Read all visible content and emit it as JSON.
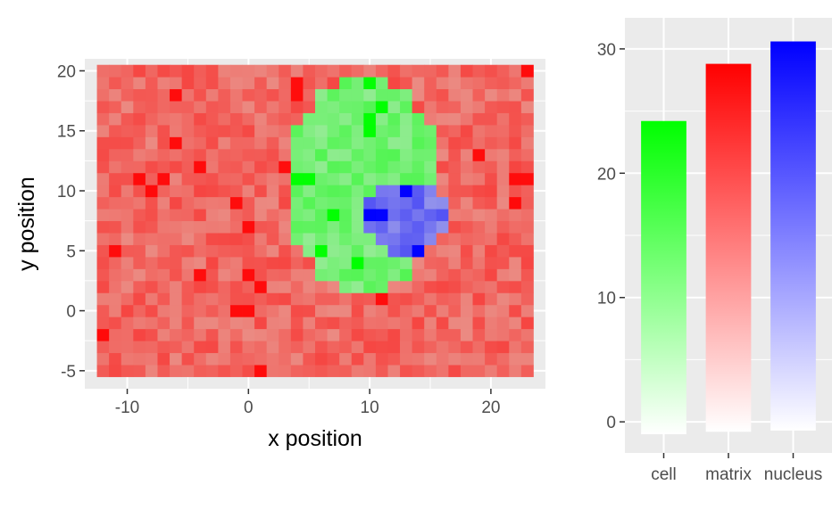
{
  "chart_data": [
    {
      "type": "heatmap",
      "title": "",
      "xlabel": "x position",
      "ylabel": "y position",
      "xlim": [
        -13.5,
        24.5
      ],
      "ylim": [
        -6.5,
        21.0
      ],
      "x_ticks": [
        -10,
        0,
        10,
        20
      ],
      "y_ticks": [
        -5,
        0,
        5,
        10,
        15,
        20
      ],
      "x_tick_labels": [
        "-10",
        "0",
        "10",
        "20"
      ],
      "y_tick_labels": [
        "-5",
        "0",
        "5",
        "10",
        "15",
        "20"
      ],
      "grid": true,
      "tile_size": 1,
      "x_range": [
        -12,
        23
      ],
      "y_range": [
        -5,
        20
      ],
      "regions": [
        {
          "name": "matrix",
          "color": "#ff0000"
        },
        {
          "name": "cell",
          "color": "#00ff00",
          "center": [
            9.5,
            10.5
          ],
          "radius_x": 6.5,
          "radius_y": 9.0
        },
        {
          "name": "nucleus",
          "color": "#0000ff",
          "center": [
            13.0,
            7.8
          ],
          "radius_x": 3.3,
          "radius_y": 3.1
        }
      ]
    },
    {
      "type": "bar",
      "title": "",
      "xlabel": "",
      "ylabel": "",
      "categories": [
        "cell",
        "matrix",
        "nucleus"
      ],
      "values": [
        24.2,
        28.8,
        30.6
      ],
      "bar_min": [
        -1.0,
        -0.8,
        -0.7
      ],
      "colors": [
        "#00ff00",
        "#ff0000",
        "#0000ff"
      ],
      "ylim": [
        -2.5,
        32.5
      ],
      "y_ticks": [
        0,
        10,
        20,
        30
      ],
      "y_tick_labels": [
        "0",
        "10",
        "20",
        "30"
      ],
      "grid": true
    }
  ]
}
